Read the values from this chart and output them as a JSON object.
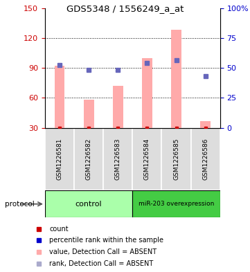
{
  "title": "GDS5348 / 1556249_a_at",
  "samples": [
    "GSM1226581",
    "GSM1226582",
    "GSM1226583",
    "GSM1226584",
    "GSM1226585",
    "GSM1226586"
  ],
  "pink_bar_values": [
    92,
    58,
    72,
    100,
    128,
    37
  ],
  "blue_square_left_vals": [
    93,
    88,
    88,
    95,
    98,
    82
  ],
  "red_square_counts": [
    30,
    30,
    30,
    30,
    30,
    30
  ],
  "ylim_left": [
    30,
    150
  ],
  "ylim_right": [
    0,
    100
  ],
  "yticks_left": [
    30,
    60,
    90,
    120,
    150
  ],
  "yticks_right": [
    0,
    25,
    50,
    75,
    100
  ],
  "yticklabels_right": [
    "0",
    "25",
    "50",
    "75",
    "100%"
  ],
  "left_axis_color": "#cc0000",
  "right_axis_color": "#0000cc",
  "pink_color": "#ffaaaa",
  "blue_color": "#6666bb",
  "red_color": "#cc0000",
  "lightblue_color": "#aaaacc",
  "group1_label": "control",
  "group2_label": "miR-203 overexpression",
  "group1_color": "#aaffaa",
  "group2_color": "#44cc44",
  "protocol_label": "protocol",
  "legend_items": [
    {
      "color": "#cc0000",
      "label": "count"
    },
    {
      "color": "#0000cc",
      "label": "percentile rank within the sample"
    },
    {
      "color": "#ffaaaa",
      "label": "value, Detection Call = ABSENT"
    },
    {
      "color": "#aaaacc",
      "label": "rank, Detection Call = ABSENT"
    }
  ],
  "background_color": "#ffffff",
  "grid_dotted_vals": [
    60,
    90,
    120
  ],
  "bar_width": 0.35
}
